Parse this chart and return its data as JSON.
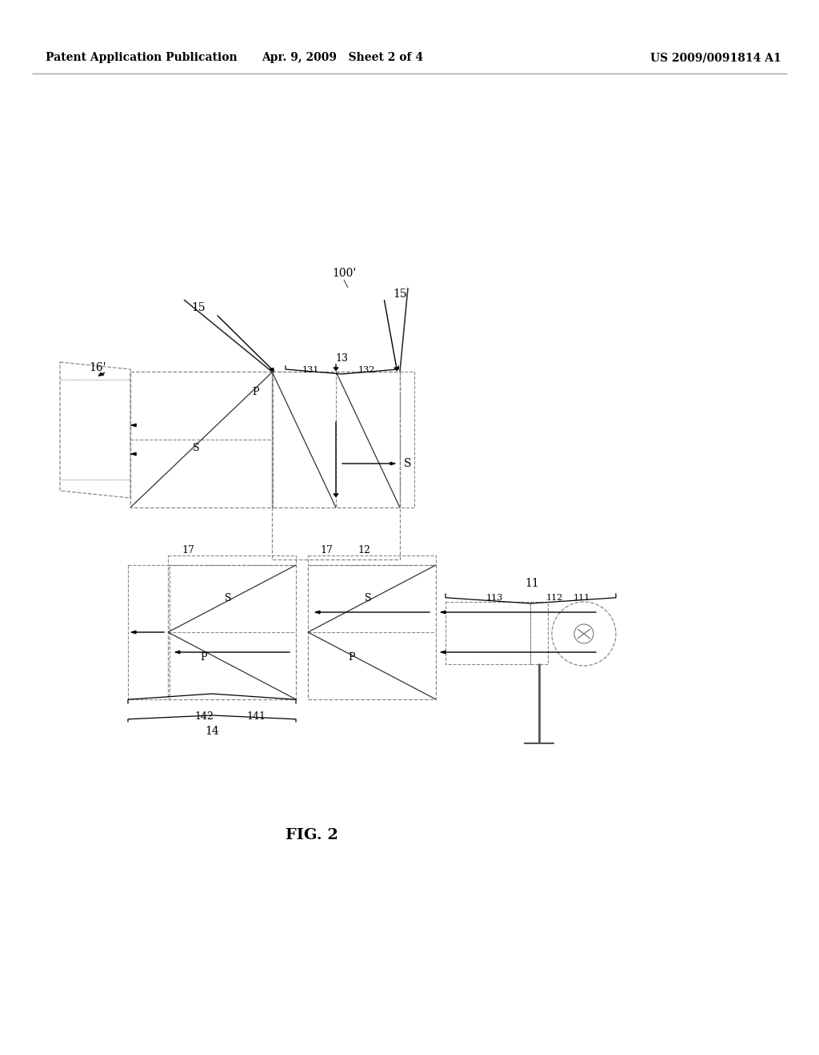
{
  "bg_color": "#ffffff",
  "text_color": "#000000",
  "line_color": "#888888",
  "dark_color": "#333333",
  "header_left": "Patent Application Publication",
  "header_mid": "Apr. 9, 2009   Sheet 2 of 4",
  "header_right": "US 2009/0091814 A1",
  "fig_label": "FIG. 2"
}
